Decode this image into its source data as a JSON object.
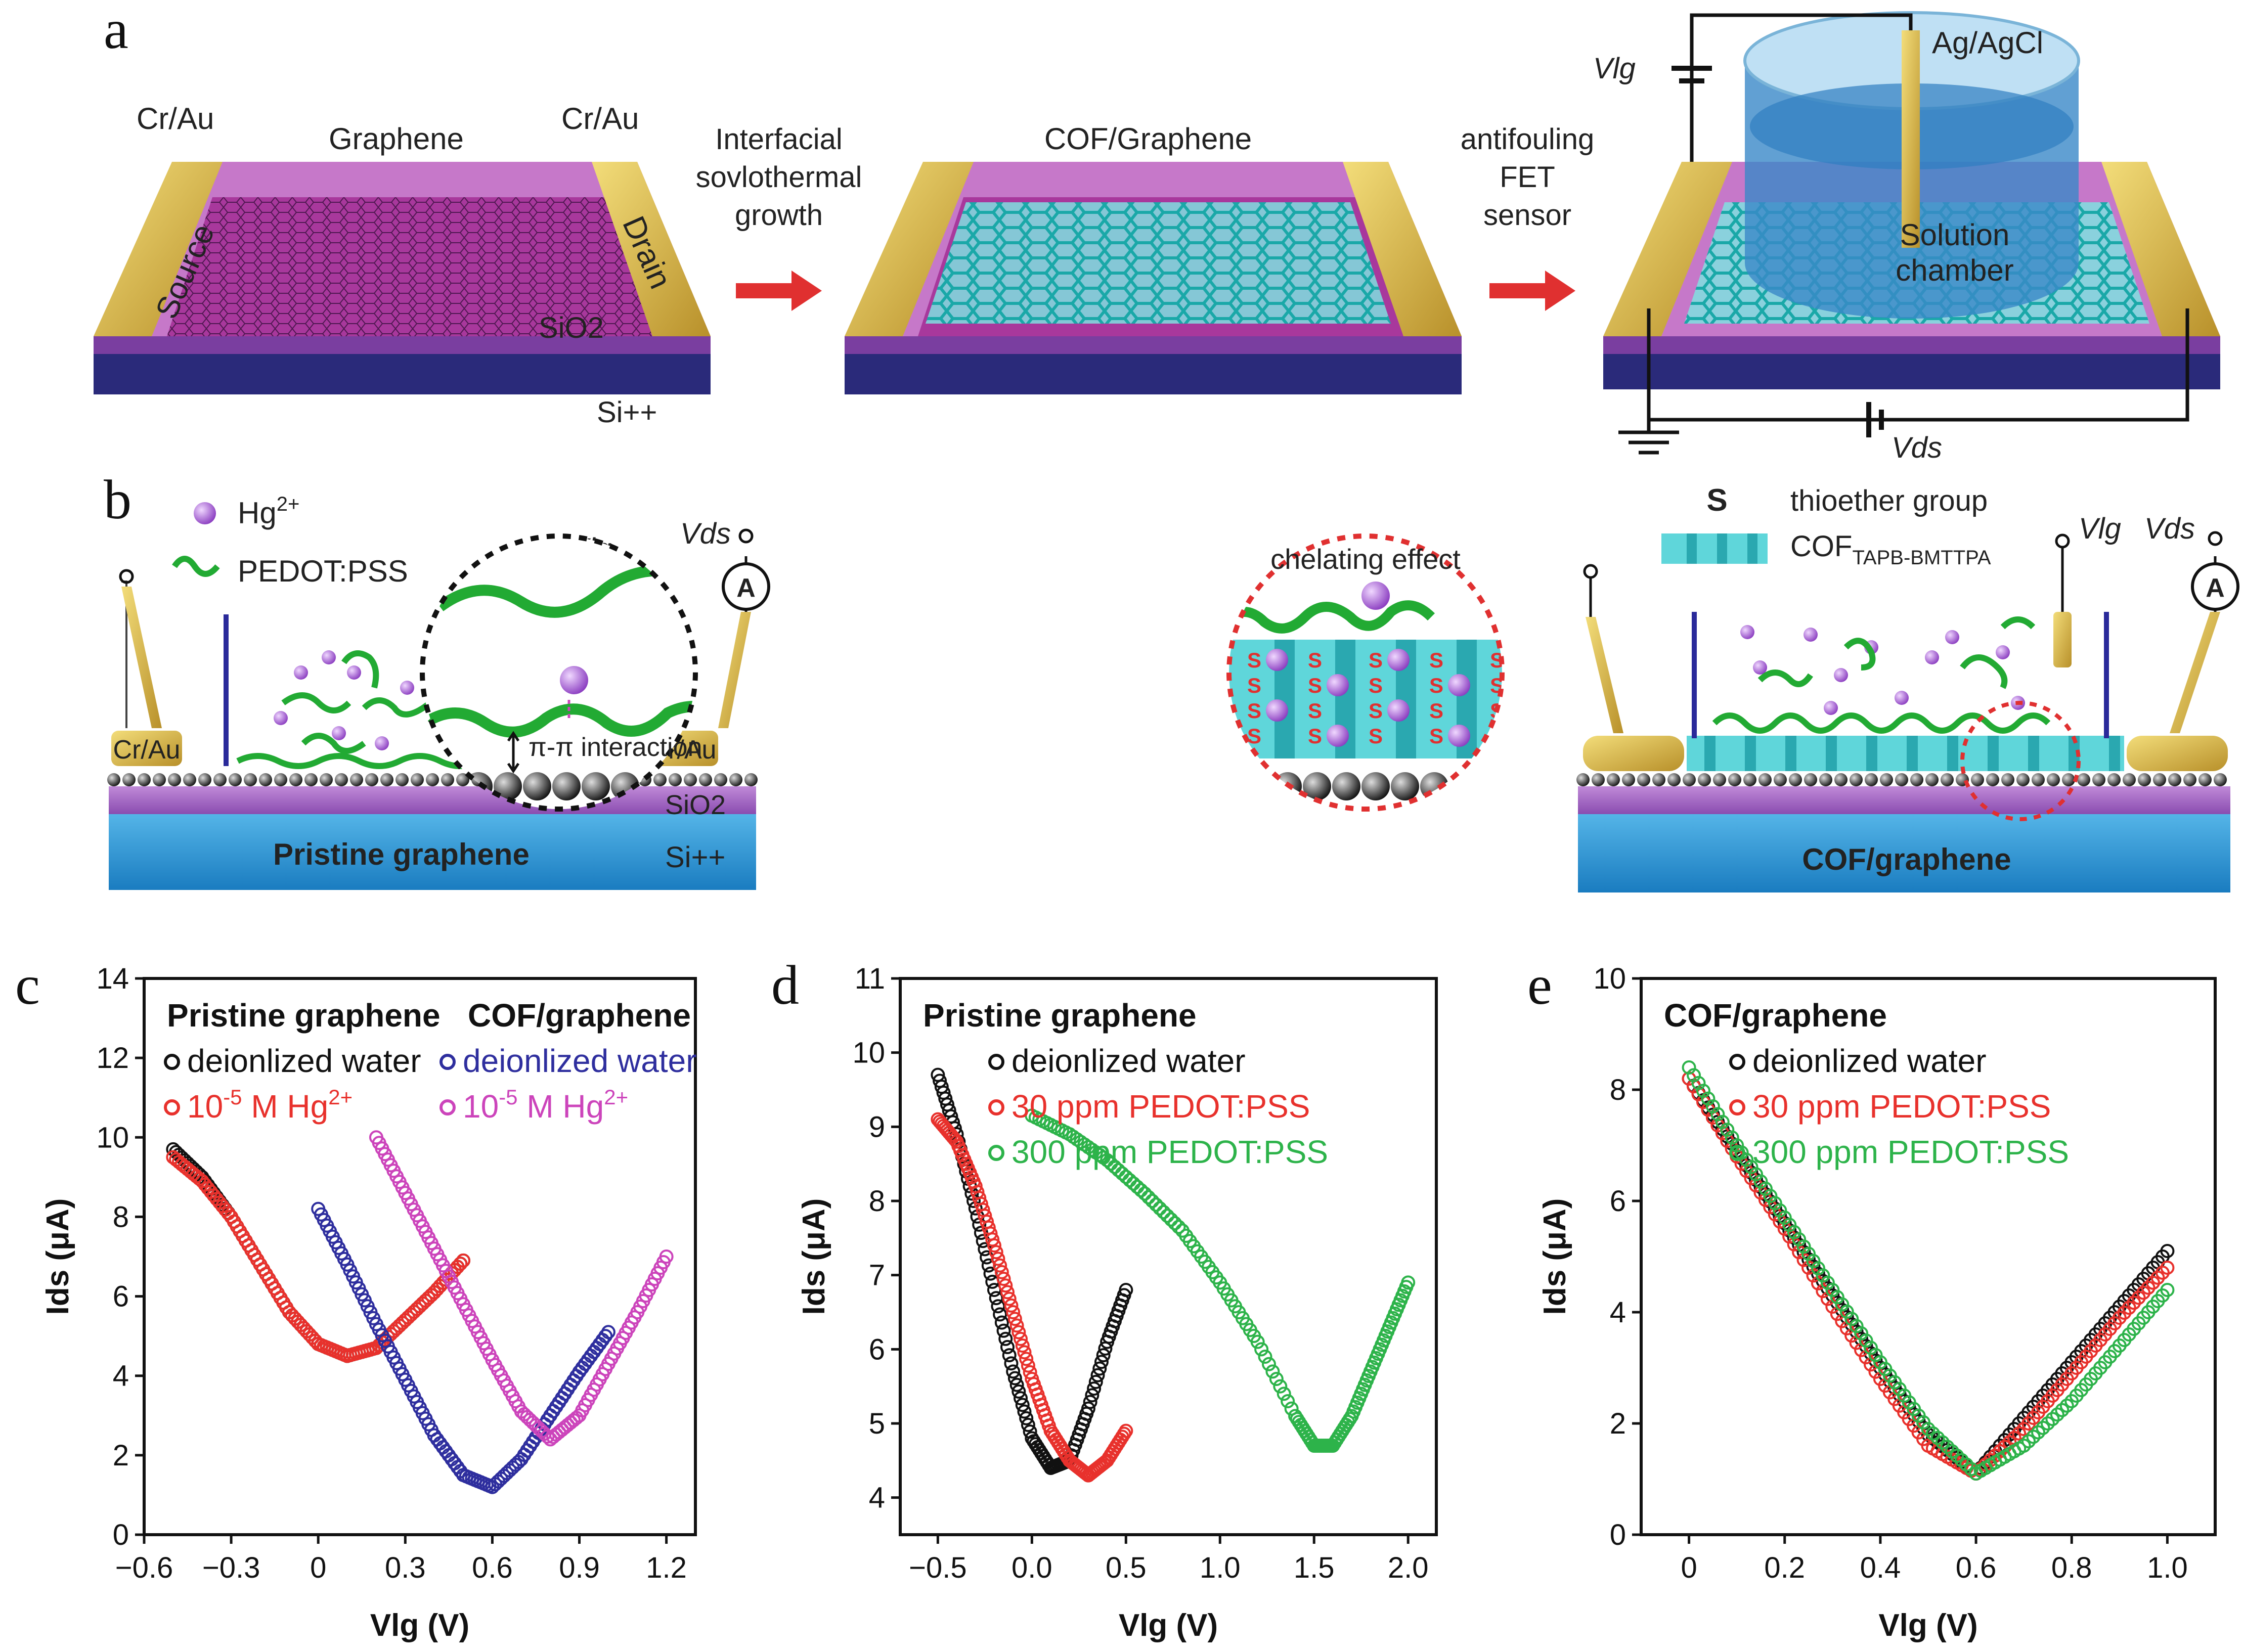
{
  "panel_a": {
    "letter": "a",
    "label_cr_au_left": "Cr/Au",
    "label_graphene": "Graphene",
    "label_cr_au_right": "Cr/Au",
    "label_source": "Source",
    "label_drain": "Drain",
    "label_sio2": "SiO2",
    "label_si": "Si++",
    "arrow1_line1": "Interfacial",
    "arrow1_line2": "sovlothermal",
    "arrow1_line3": "growth",
    "label_cof_graphene": "COF/Graphene",
    "arrow2_line1": "antifouling",
    "arrow2_line2": "FET",
    "arrow2_line3": "sensor",
    "label_vlg": "Vlg",
    "label_ag_agcl": "Ag/AgCl",
    "label_solution_1": "Solution",
    "label_solution_2": "chamber",
    "label_vds": "Vds",
    "colors": {
      "substrate": "#c678c9",
      "silicon": "#2a2a7a",
      "electrode": "#d4b04a",
      "graphene": "#a8389c",
      "cof": "#36c8c8",
      "arrow": "#e03030"
    }
  },
  "panel_b": {
    "letter": "b",
    "legend_hg": "Hg",
    "legend_hg_sup": "2+",
    "legend_pedot": "PEDOT:PSS",
    "label_vlg_left": "Vlg",
    "label_vds_left": "Vds",
    "label_cr_au_1": "Cr/Au",
    "label_cr_au_2": "Cr/Au",
    "label_sio2": "SiO2",
    "label_si": "Si++",
    "label_pristine": "Pristine graphene",
    "label_pi_pi": "π-π interaction",
    "label_chelating": "chelating effect",
    "label_s": "S",
    "label_thioether": "thioether group",
    "label_cof": "COF",
    "label_cof_sub": "TAPB-BMTTPA",
    "label_vlg_right": "Vlg",
    "label_vds_right": "Vds",
    "label_cof_graphene": "COF/graphene",
    "ammeter": "A",
    "colors": {
      "hg": "#9b59b6",
      "pedot": "#22aa33",
      "substrate_blue": "#2a9ad8",
      "sio2": "#a464c4"
    }
  },
  "charts": [
    {
      "letter": "c",
      "type": "scatter",
      "xlabel": "Vlg (V)",
      "ylabel": "Ids (μA)",
      "xlim": [
        -0.6,
        1.3
      ],
      "ylim": [
        0,
        14
      ],
      "xticks": [
        "−0.6",
        "−0.3",
        "0",
        "0.3",
        "0.6",
        "0.9",
        "1.2"
      ],
      "xtick_values": [
        -0.6,
        -0.3,
        0,
        0.3,
        0.6,
        0.9,
        1.2
      ],
      "yticks": [
        "0",
        "2",
        "4",
        "6",
        "8",
        "10",
        "12",
        "14"
      ],
      "ytick_values": [
        0,
        2,
        4,
        6,
        8,
        10,
        12,
        14
      ],
      "header_left": "Pristine graphene",
      "header_right": "COF/graphene",
      "legend": [
        {
          "text": "deionlized water",
          "color": "#111111"
        },
        {
          "text": "10",
          "sup": "-5",
          "tail": "M Hg",
          "sup2": "2+",
          "color": "#e8312c"
        },
        {
          "text": "deionlized water",
          "color": "#2e2e9e"
        },
        {
          "text": "10",
          "sup": "-5",
          "tail": "M Hg",
          "sup2": "2+",
          "color": "#cc44bb"
        }
      ],
      "series": [
        {
          "name": "Pristine graphene – deionlized water",
          "color": "#111111",
          "x": [
            -0.5,
            -0.4,
            -0.3,
            -0.2,
            -0.1,
            0.0,
            0.1,
            0.2,
            0.3,
            0.4,
            0.5
          ],
          "y": [
            9.7,
            9.0,
            8.0,
            6.8,
            5.6,
            4.8,
            4.5,
            4.7,
            5.4,
            6.1,
            6.9
          ]
        },
        {
          "name": "Pristine graphene – 10-5 M Hg2+",
          "color": "#e8312c",
          "x": [
            -0.5,
            -0.4,
            -0.3,
            -0.2,
            -0.1,
            0.0,
            0.1,
            0.2,
            0.3,
            0.4,
            0.5
          ],
          "y": [
            9.5,
            8.9,
            8.0,
            6.8,
            5.6,
            4.8,
            4.5,
            4.7,
            5.4,
            6.1,
            6.9
          ]
        },
        {
          "name": "COF/graphene – deionlized water",
          "color": "#2e2e9e",
          "x": [
            0.0,
            0.1,
            0.2,
            0.3,
            0.4,
            0.5,
            0.6,
            0.7,
            0.8,
            0.9,
            1.0
          ],
          "y": [
            8.2,
            6.8,
            5.3,
            3.9,
            2.5,
            1.5,
            1.2,
            1.9,
            3.0,
            4.1,
            5.1
          ]
        },
        {
          "name": "COF/graphene – 10-5 M Hg2+",
          "color": "#cc44bb",
          "x": [
            0.2,
            0.3,
            0.4,
            0.5,
            0.6,
            0.7,
            0.8,
            0.9,
            1.0,
            1.1,
            1.2
          ],
          "y": [
            10.0,
            8.6,
            7.2,
            5.8,
            4.4,
            3.1,
            2.4,
            3.0,
            4.3,
            5.6,
            7.0
          ]
        }
      ]
    },
    {
      "letter": "d",
      "type": "scatter",
      "xlabel": "Vlg (V)",
      "ylabel": "Ids (μA)",
      "xlim": [
        -0.7,
        2.15
      ],
      "ylim": [
        3.5,
        11
      ],
      "xticks": [
        "−0.5",
        "0.0",
        "0.5",
        "1.0",
        "1.5",
        "2.0"
      ],
      "xtick_values": [
        -0.5,
        0,
        0.5,
        1.0,
        1.5,
        2.0
      ],
      "yticks": [
        "4",
        "5",
        "6",
        "7",
        "8",
        "9",
        "10",
        "11"
      ],
      "ytick_values": [
        4,
        5,
        6,
        7,
        8,
        9,
        10,
        11
      ],
      "header_left": "Pristine graphene",
      "legend": [
        {
          "text": "deionlized water",
          "color": "#111111"
        },
        {
          "text": "30 ppm PEDOT:PSS",
          "color": "#e8312c"
        },
        {
          "text": "300 ppm PEDOT:PSS",
          "color": "#2db34a"
        }
      ],
      "series": [
        {
          "name": "deionlized water",
          "color": "#111111",
          "x": [
            -0.5,
            -0.4,
            -0.3,
            -0.2,
            -0.1,
            0.0,
            0.1,
            0.2,
            0.3,
            0.4,
            0.5
          ],
          "y": [
            9.7,
            8.9,
            7.9,
            6.8,
            5.7,
            4.8,
            4.4,
            4.5,
            5.2,
            6.1,
            6.8
          ]
        },
        {
          "name": "30 ppm PEDOT:PSS",
          "color": "#e8312c",
          "x": [
            -0.5,
            -0.4,
            -0.3,
            -0.2,
            -0.1,
            0.0,
            0.1,
            0.2,
            0.3,
            0.4,
            0.5
          ],
          "y": [
            9.1,
            8.8,
            8.2,
            7.4,
            6.5,
            5.6,
            4.9,
            4.5,
            4.3,
            4.5,
            4.9
          ]
        },
        {
          "name": "300 ppm PEDOT:PSS",
          "color": "#2db34a",
          "x": [
            0.0,
            0.2,
            0.4,
            0.6,
            0.8,
            1.0,
            1.2,
            1.4,
            1.5,
            1.6,
            1.7,
            1.8,
            1.9,
            2.0
          ],
          "y": [
            9.15,
            8.9,
            8.55,
            8.1,
            7.6,
            6.9,
            6.1,
            5.1,
            4.7,
            4.7,
            5.1,
            5.7,
            6.3,
            6.9
          ]
        }
      ]
    },
    {
      "letter": "e",
      "type": "scatter",
      "xlabel": "Vlg (V)",
      "ylabel": "Ids (μA)",
      "xlim": [
        -0.1,
        1.1
      ],
      "ylim": [
        0,
        10
      ],
      "xticks": [
        "0",
        "0.2",
        "0.4",
        "0.6",
        "0.8",
        "1.0"
      ],
      "xtick_values": [
        0,
        0.2,
        0.4,
        0.6,
        0.8,
        1.0
      ],
      "yticks": [
        "0",
        "2",
        "4",
        "6",
        "8",
        "10"
      ],
      "ytick_values": [
        0,
        2,
        4,
        6,
        8,
        10
      ],
      "header_left": "COF/graphene",
      "legend": [
        {
          "text": "deionlized water",
          "color": "#111111"
        },
        {
          "text": "30 ppm PEDOT:PSS",
          "color": "#e8312c"
        },
        {
          "text": "300 ppm PEDOT:PSS",
          "color": "#2db34a"
        }
      ],
      "series": [
        {
          "name": "deionlized water",
          "color": "#111111",
          "x": [
            0.0,
            0.1,
            0.2,
            0.3,
            0.4,
            0.5,
            0.6,
            0.7,
            0.8,
            0.9,
            1.0
          ],
          "y": [
            8.2,
            6.9,
            5.6,
            4.3,
            3.0,
            1.8,
            1.1,
            2.1,
            3.1,
            4.1,
            5.1
          ]
        },
        {
          "name": "30 ppm PEDOT:PSS",
          "color": "#e8312c",
          "x": [
            0.0,
            0.1,
            0.2,
            0.3,
            0.4,
            0.5,
            0.6,
            0.7,
            0.8,
            0.9,
            1.0
          ],
          "y": [
            8.2,
            6.8,
            5.5,
            4.1,
            2.8,
            1.6,
            1.1,
            1.9,
            2.9,
            3.9,
            4.8
          ]
        },
        {
          "name": "300 ppm PEDOT:PSS",
          "color": "#2db34a",
          "x": [
            0.0,
            0.1,
            0.2,
            0.3,
            0.4,
            0.5,
            0.6,
            0.7,
            0.8,
            0.9,
            1.0
          ],
          "y": [
            8.4,
            7.0,
            5.7,
            4.4,
            3.1,
            1.9,
            1.1,
            1.6,
            2.4,
            3.4,
            4.4
          ]
        }
      ]
    }
  ]
}
